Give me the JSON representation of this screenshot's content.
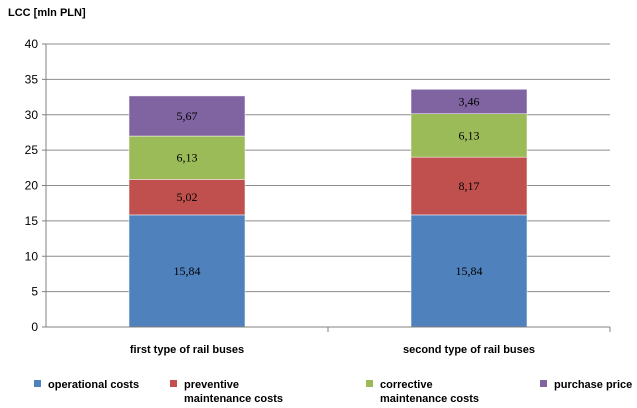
{
  "chart_data": {
    "type": "bar",
    "stacked": true,
    "title": "",
    "ylabel": "LCC [mln PLN]",
    "xlabel": "",
    "ylim": [
      0,
      40
    ],
    "yticks": [
      0,
      5,
      10,
      15,
      20,
      25,
      30,
      35,
      40
    ],
    "grid": true,
    "legend_position": "bottom",
    "categories": [
      "first type of rail buses",
      "second type of rail buses"
    ],
    "series": [
      {
        "name": "operational costs",
        "color": "#4F81BD",
        "values": [
          15.84,
          15.84
        ],
        "labels": [
          "15,84",
          "15,84"
        ]
      },
      {
        "name": "preventive maintenance costs",
        "legend_lines": [
          "preventive",
          "maintenance costs"
        ],
        "color": "#C0504D",
        "values": [
          5.02,
          8.17
        ],
        "labels": [
          "5,02",
          "8,17"
        ]
      },
      {
        "name": "corrective maintenance costs",
        "legend_lines": [
          "corrective",
          "maintenance costs"
        ],
        "color": "#9BBB59",
        "values": [
          6.13,
          6.13
        ],
        "labels": [
          "6,13",
          "6,13"
        ]
      },
      {
        "name": "purchase price",
        "legend_lines": [
          "purchase price"
        ],
        "color": "#8064A2",
        "values": [
          5.67,
          3.46
        ],
        "labels": [
          "5,67",
          "3,46"
        ]
      }
    ]
  }
}
